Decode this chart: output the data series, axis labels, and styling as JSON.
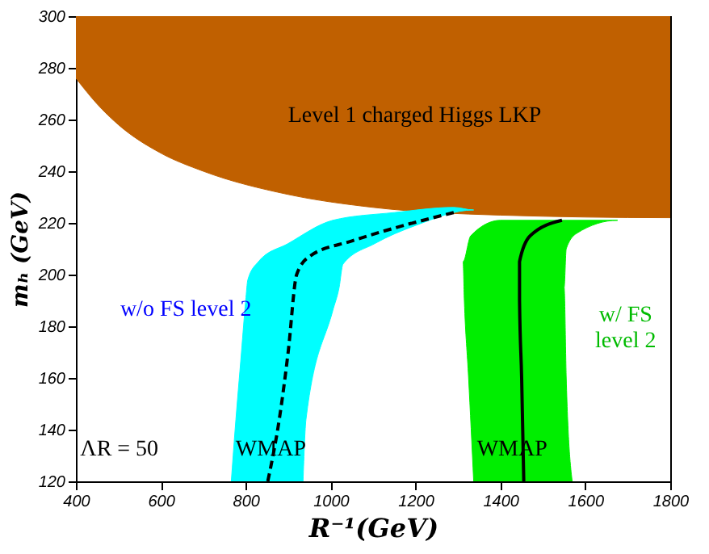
{
  "chart_data": {
    "type": "area",
    "xlabel": "R⁻¹(GeV)",
    "ylabel": "mₕ (GeV)",
    "xlim": [
      400,
      1800
    ],
    "xticks": [
      400,
      600,
      800,
      1000,
      1200,
      1400,
      1600,
      1800
    ],
    "ylim": [
      120,
      300
    ],
    "yticks": [
      120,
      140,
      160,
      180,
      200,
      220,
      240,
      260,
      280,
      300
    ],
    "grid": false,
    "series": [
      {
        "color": "#c06000",
        "x": [
          400,
          1800,
          1800,
          1400,
          1100,
          900,
          700,
          600,
          500,
          450,
          400
        ],
        "values": [
          300,
          300,
          222,
          223,
          226,
          231,
          240,
          247,
          258,
          266,
          276
        ]
      },
      {
        "color": "#00ffff",
        "x": [
          766,
          775,
          790,
          800,
          805,
          830,
          900,
          1005,
          1150,
          1290,
          1337,
          1200,
          1104,
          1029,
          1020,
          1005,
          942,
          935
        ],
        "values": [
          120,
          140,
          170,
          190,
          198,
          205,
          212,
          221,
          224,
          226,
          225,
          219,
          212,
          204,
          195,
          186,
          144,
          120
        ]
      },
      {
        "color": "#00ee00",
        "x": [
          1337,
          1325,
          1315,
          1312,
          1330,
          1400,
          1676,
          1580,
          1555,
          1550,
          1555,
          1569
        ],
        "values": [
          120,
          160,
          190,
          205,
          215,
          221,
          221,
          216,
          210,
          195,
          160,
          120
        ]
      },
      {
        "type": "line",
        "line_style": "dashed",
        "color": "#000000",
        "x": [
          852,
          880,
          900,
          920,
          950,
          1050,
          1150,
          1290
        ],
        "values": [
          120,
          145,
          170,
          200,
          207,
          213,
          218,
          224
        ]
      },
      {
        "type": "line",
        "line_style": "solid",
        "color": "#000000",
        "x": [
          1455,
          1450,
          1445,
          1445,
          1470,
          1545
        ],
        "values": [
          120,
          160,
          190,
          205,
          215,
          221
        ]
      }
    ],
    "annotations": [
      "Level 1 charged Higgs LKP",
      "w/o FS level 2",
      "w/ FS\nlevel 2",
      "ΛR = 50",
      "WMAP",
      "WMAP"
    ]
  }
}
